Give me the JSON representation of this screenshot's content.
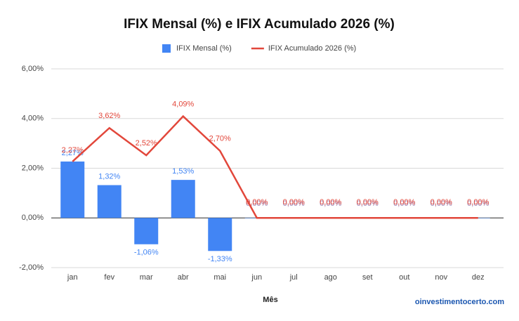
{
  "chart_data": {
    "type": "combo",
    "title": "IFIX Mensal (%) e IFIX Acumulado 2026 (%)",
    "x_label": "Mês",
    "source": "oinvestimentocerto.com",
    "categories": [
      "jan",
      "fev",
      "mar",
      "abr",
      "mai",
      "jun",
      "jul",
      "ago",
      "set",
      "out",
      "nov",
      "dez"
    ],
    "series": [
      {
        "name": "IFIX Mensal (%)",
        "type": "bar",
        "color": "#4285f4",
        "values": [
          2.27,
          1.32,
          -1.06,
          1.53,
          -1.33,
          0,
          0,
          0,
          0,
          0,
          0,
          0
        ],
        "value_labels": [
          "2,27%",
          "1,32%",
          "-1,06%",
          "1,53%",
          "-1,33%",
          "0,00%",
          "0,00%",
          "0,00%",
          "0,00%",
          "0,00%",
          "0,00%",
          "0,00%"
        ]
      },
      {
        "name": "IFIX Acumulado 2026 (%)",
        "type": "line",
        "color": "#e2473b",
        "values": [
          2.27,
          3.62,
          2.52,
          4.09,
          2.7,
          0,
          0,
          0,
          0,
          0,
          0,
          0
        ],
        "value_labels": [
          "2,27%",
          "3,62%",
          "2,52%",
          "4,09%",
          "2,70%",
          "0,00%",
          "0,00%",
          "0,00%",
          "0,00%",
          "0,00%",
          "0,00%",
          "0,00%"
        ]
      }
    ],
    "ylim": [
      -2,
      6
    ],
    "yticks": [
      {
        "value": -2,
        "label": "-2,00%"
      },
      {
        "value": 0,
        "label": "0,00%"
      },
      {
        "value": 2,
        "label": "2,00%"
      },
      {
        "value": 4,
        "label": "4,00%"
      },
      {
        "value": 6,
        "label": "6,00%"
      }
    ],
    "grid": true,
    "legend": "top"
  }
}
